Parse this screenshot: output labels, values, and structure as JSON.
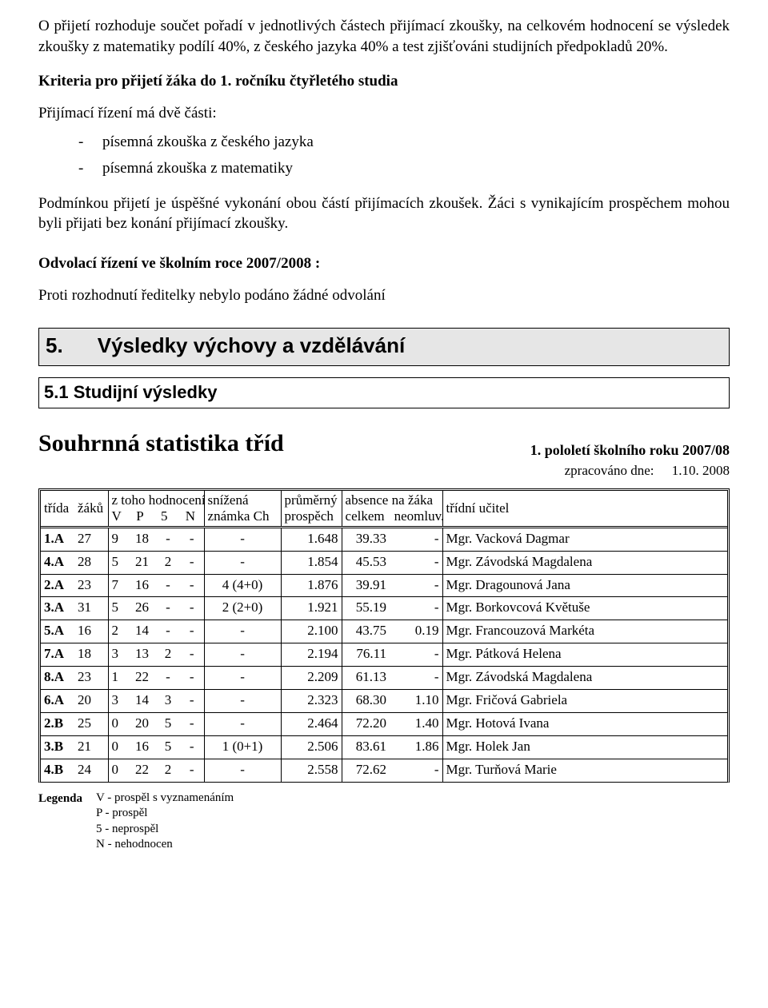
{
  "colors": {
    "text": "#000000",
    "background": "#ffffff",
    "heading_fill": "#e6e6e6",
    "border": "#000000"
  },
  "typography": {
    "body_family": "Times New Roman",
    "body_size_pt": 14,
    "heading_family": "Arial",
    "heading_size_pt": 20,
    "stats_title_pt": 22
  },
  "intro": {
    "p1": "O přijetí rozhoduje součet pořadí v jednotlivých částech přijímací zkoušky, na celkovém hodnocení se výsledek zkoušky z matematiky podílí 40%, z českého jazyka 40% a test zjišťováni studijních předpokladů 20%.",
    "kriteria_title": "Kriteria pro přijetí žáka do 1. ročníku čtyřletého studia",
    "p2": "Přijímací řízení má dvě části:",
    "bullets": [
      "písemná zkouška z českého jazyka",
      "písemná zkouška z matematiky"
    ],
    "p3": "Podmínkou přijetí je úspěšné vykonání obou částí přijímacích zkoušek. Žáci s vynikajícím prospěchem mohou byli přijati bez konání přijímací zkoušky.",
    "odvolaci_title": "Odvolací řízení ve školním roce 2007/2008 :",
    "odvolaci_text": "Proti rozhodnutí ředitelky nebylo podáno žádné odvolání"
  },
  "heading5": {
    "num": "5.",
    "text": "Výsledky výchovy a vzdělávání"
  },
  "sub51": "5.1 Studijní výsledky",
  "stats": {
    "title": "Souhrnná statistika tříd",
    "subtitle": "1. pololetí školního roku 2007/08",
    "processed_label": "zpracováno dne:",
    "processed_date": "1.10. 2008",
    "header": {
      "trida": "třída",
      "zaku": "žáků",
      "ztoho": "z toho hodnocení",
      "V": "V",
      "P": "P",
      "c5": "5",
      "N": "N",
      "snizena1": "snížená",
      "snizena2": "známka Ch",
      "prumerny1": "průměrný",
      "prumerny2": "prospěch",
      "absence1": "absence na žáka",
      "absence_celkem": "celkem",
      "absence_neoml": "neomluv.",
      "ucitel": "třídní učitel"
    },
    "rows": [
      {
        "trida": "1.A",
        "zaku": "27",
        "V": "9",
        "P": "18",
        "c5": "-",
        "N": "-",
        "sniz": "-",
        "prum": "1.648",
        "celk": "39.33",
        "neom": "-",
        "ucitel": "Mgr. Vacková Dagmar"
      },
      {
        "trida": "4.A",
        "zaku": "28",
        "V": "5",
        "P": "21",
        "c5": "2",
        "N": "-",
        "sniz": "-",
        "prum": "1.854",
        "celk": "45.53",
        "neom": "-",
        "ucitel": "Mgr. Závodská Magdalena"
      },
      {
        "trida": "2.A",
        "zaku": "23",
        "V": "7",
        "P": "16",
        "c5": "-",
        "N": "-",
        "sniz": "4 (4+0)",
        "prum": "1.876",
        "celk": "39.91",
        "neom": "-",
        "ucitel": "Mgr. Dragounová Jana"
      },
      {
        "trida": "3.A",
        "zaku": "31",
        "V": "5",
        "P": "26",
        "c5": "-",
        "N": "-",
        "sniz": "2 (2+0)",
        "prum": "1.921",
        "celk": "55.19",
        "neom": "-",
        "ucitel": "Mgr. Borkovcová Květuše"
      },
      {
        "trida": "5.A",
        "zaku": "16",
        "V": "2",
        "P": "14",
        "c5": "-",
        "N": "-",
        "sniz": "-",
        "prum": "2.100",
        "celk": "43.75",
        "neom": "0.19",
        "ucitel": "Mgr. Francouzová Markéta"
      },
      {
        "trida": "7.A",
        "zaku": "18",
        "V": "3",
        "P": "13",
        "c5": "2",
        "N": "-",
        "sniz": "-",
        "prum": "2.194",
        "celk": "76.11",
        "neom": "-",
        "ucitel": "Mgr. Pátková Helena"
      },
      {
        "trida": "8.A",
        "zaku": "23",
        "V": "1",
        "P": "22",
        "c5": "-",
        "N": "-",
        "sniz": "-",
        "prum": "2.209",
        "celk": "61.13",
        "neom": "-",
        "ucitel": "Mgr. Závodská Magdalena"
      },
      {
        "trida": "6.A",
        "zaku": "20",
        "V": "3",
        "P": "14",
        "c5": "3",
        "N": "-",
        "sniz": "-",
        "prum": "2.323",
        "celk": "68.30",
        "neom": "1.10",
        "ucitel": "Mgr. Fričová Gabriela"
      },
      {
        "trida": "2.B",
        "zaku": "25",
        "V": "0",
        "P": "20",
        "c5": "5",
        "N": "-",
        "sniz": "-",
        "prum": "2.464",
        "celk": "72.20",
        "neom": "1.40",
        "ucitel": "Mgr. Hotová Ivana"
      },
      {
        "trida": "3.B",
        "zaku": "21",
        "V": "0",
        "P": "16",
        "c5": "5",
        "N": "-",
        "sniz": "1 (0+1)",
        "prum": "2.506",
        "celk": "83.61",
        "neom": "1.86",
        "ucitel": "Mgr. Holek Jan"
      },
      {
        "trida": "4.B",
        "zaku": "24",
        "V": "0",
        "P": "22",
        "c5": "2",
        "N": "-",
        "sniz": "-",
        "prum": "2.558",
        "celk": "72.62",
        "neom": "-",
        "ucitel": "Mgr. Turňová Marie"
      }
    ]
  },
  "legend": {
    "label": "Legenda",
    "items": [
      "V - prospěl s vyznamenáním",
      "P - prospěl",
      "5 - neprospěl",
      "N - nehodnocen"
    ]
  }
}
